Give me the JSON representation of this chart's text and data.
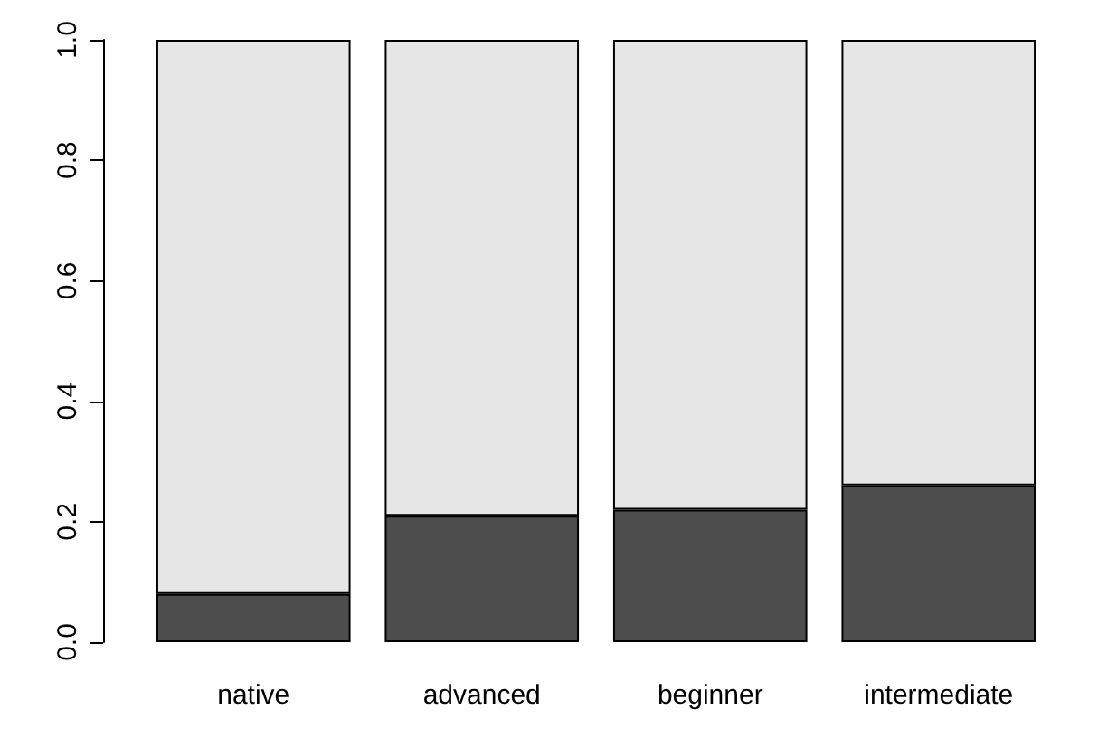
{
  "chart_data": {
    "type": "bar",
    "stacked": true,
    "categories": [
      "native",
      "advanced",
      "beginner",
      "intermediate"
    ],
    "series": [
      {
        "color": "#4d4d4d",
        "values": [
          0.08,
          0.21,
          0.22,
          0.26
        ]
      },
      {
        "color": "#e6e6e6",
        "values": [
          0.92,
          0.79,
          0.78,
          0.74
        ]
      }
    ],
    "ylim": [
      0,
      1
    ],
    "yticks": [
      {
        "value": 0,
        "label": "0.0"
      },
      0.2,
      0.4,
      0.6,
      0.8,
      {
        "value": 1,
        "label": "1.0"
      }
    ],
    "grid": false
  }
}
